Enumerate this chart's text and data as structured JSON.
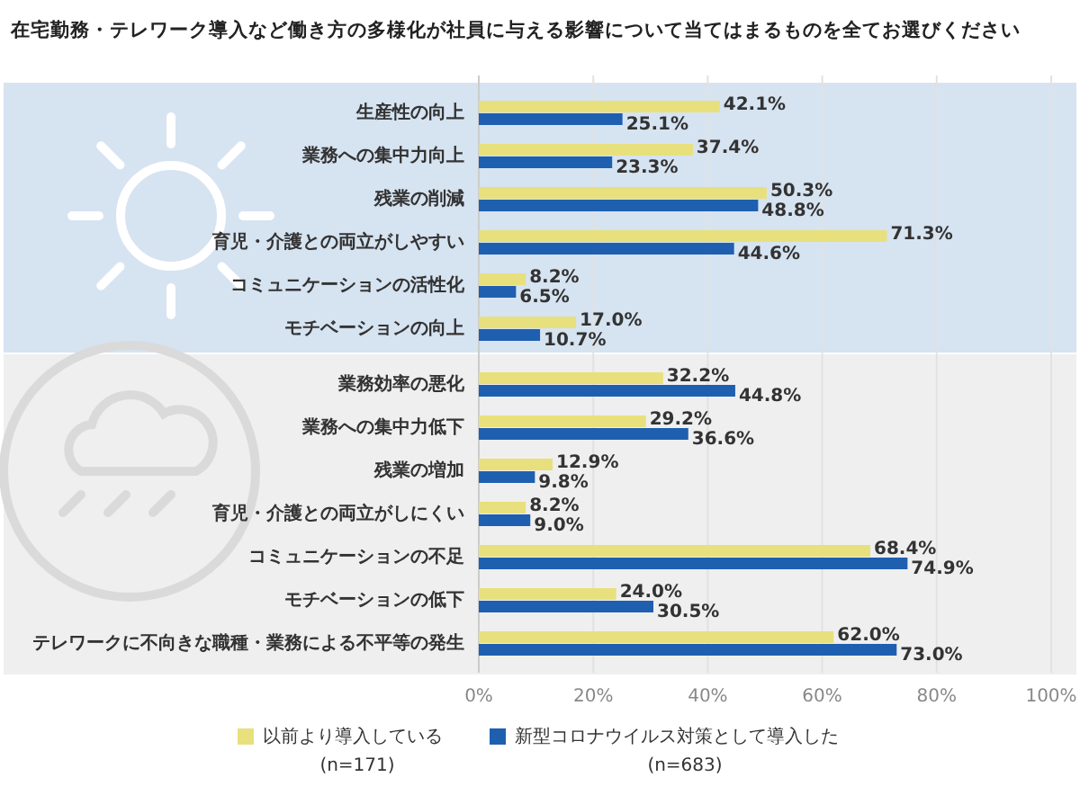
{
  "chart_data": {
    "type": "bar",
    "orientation": "horizontal",
    "title": "在宅勤務・テレワーク導入など働き方の多様化が社員に与える影響について当てはまるものを全てお選びください",
    "categories": [
      "生産性の向上",
      "業務への集中力向上",
      "残業の削減",
      "育児・介護との両立がしやすい",
      "コミュニケーションの活性化",
      "モチベーションの向上",
      "業務効率の悪化",
      "業務への集中力低下",
      "残業の増加",
      "育児・介護との両立がしにくい",
      "コミュニケーションの不足",
      "モチベーションの低下",
      "テレワークに不向きな職種・業務による不平等の発生"
    ],
    "series": [
      {
        "name": "以前より導入している\n(n=171)",
        "color": "#e8e07c",
        "values": [
          42.1,
          37.4,
          50.3,
          71.3,
          8.2,
          17.0,
          32.2,
          29.2,
          12.9,
          8.2,
          68.4,
          24.0,
          62.0
        ],
        "value_labels": [
          "42.1%",
          "37.4%",
          "50.3%",
          "71.3%",
          "8.2%",
          "17.0%",
          "32.2%",
          "29.2%",
          "12.9%",
          "8.2%",
          "68.4%",
          "24.0%",
          "62.0%"
        ]
      },
      {
        "name": "新型コロナウイルス対策として導入した\n(n=683)",
        "color": "#1f5fb0",
        "values": [
          25.1,
          23.3,
          48.8,
          44.6,
          6.5,
          10.7,
          44.8,
          36.6,
          9.8,
          9.0,
          74.9,
          30.5,
          73.0
        ],
        "value_labels": [
          "25.1%",
          "23.3%",
          "48.8%",
          "44.6%",
          "6.5%",
          "10.7%",
          "44.8%",
          "36.6%",
          "9.8%",
          "9.0%",
          "74.9%",
          "30.5%",
          "73.0%"
        ]
      }
    ],
    "xlim": [
      0,
      100
    ],
    "xticks": [
      {
        "value": 0,
        "label": "0%"
      },
      {
        "value": 20,
        "label": "20%"
      },
      {
        "value": 40,
        "label": "40%"
      },
      {
        "value": 60,
        "label": "60%"
      },
      {
        "value": 80,
        "label": "80%"
      },
      {
        "value": 100,
        "label": "100%"
      }
    ],
    "bands": [
      {
        "axis": "y",
        "from": "生産性の向上",
        "to": "モチベーションの向上",
        "color": "#d6e3f1"
      },
      {
        "axis": "y",
        "from": "業務効率の悪化",
        "to": "テレワークに不向きな職種・業務による不平等の発生",
        "color": "#efefef"
      }
    ],
    "grid": "x",
    "legend": "bottom"
  }
}
